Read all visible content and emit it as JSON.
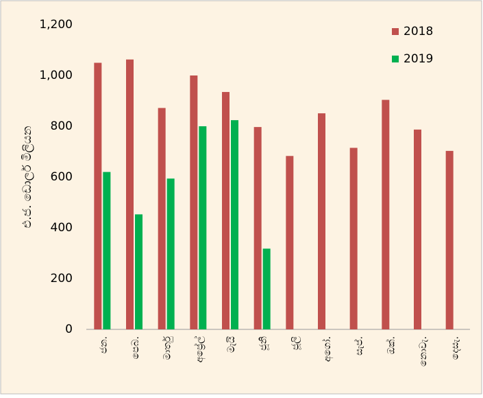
{
  "chart_data": {
    "type": "bar",
    "y_label": "එ.ජ. ඩොලර් මිලියන",
    "categories": [
      "ජන.",
      "පෙබ.",
      "මාර්තු",
      "අප්‍රේල්",
      "මැයි",
      "ජූනි",
      "ජූලි",
      "අගෝ.",
      "සැප්.",
      "ඔක්.",
      "නොවැ.",
      "දෙසැ."
    ],
    "series": [
      {
        "name": "2018",
        "color": "#c0504d",
        "values": [
          1050,
          1063,
          872,
          1000,
          935,
          797,
          683,
          851,
          715,
          904,
          787,
          703
        ]
      },
      {
        "name": "2019",
        "color": "#00b050",
        "values": [
          620,
          453,
          594,
          800,
          824,
          318,
          null,
          null,
          null,
          null,
          null,
          null
        ]
      }
    ],
    "ylim": [
      0,
      1200
    ],
    "yticks": [
      0,
      200,
      400,
      600,
      800,
      {
        "value": 1000,
        "label": "1,000"
      },
      {
        "value": 1200,
        "label": "1,200"
      }
    ],
    "legend": "upper right",
    "grid": false
  }
}
